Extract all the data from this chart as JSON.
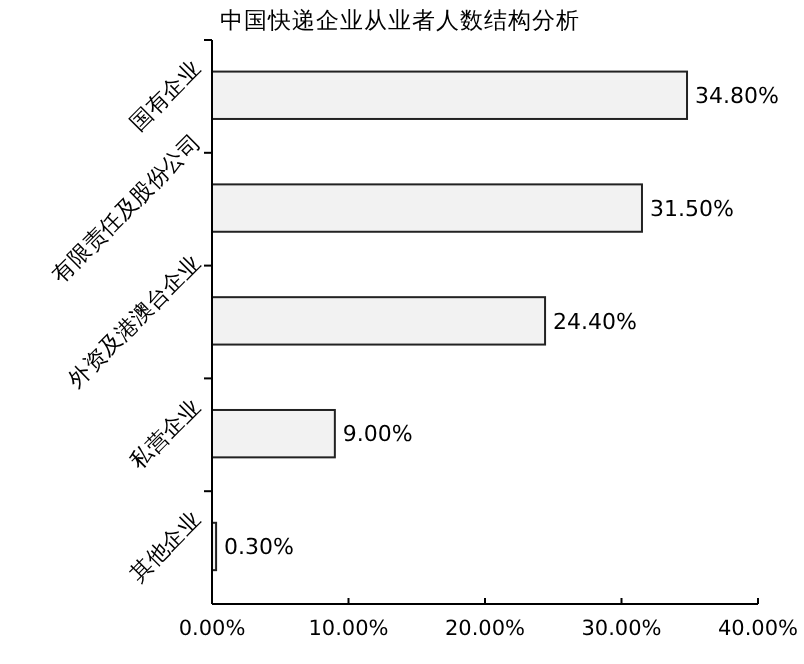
{
  "chart_data": {
    "type": "bar",
    "orientation": "horizontal",
    "title": "中国快递企业从业者人数结构分析",
    "categories": [
      "国有企业",
      "有限责任及股份公司",
      "外资及港澳台企业",
      "私营企业",
      "其他企业"
    ],
    "values": [
      34.8,
      31.5,
      24.4,
      9.0,
      0.3
    ],
    "value_labels": [
      "34.80%",
      "31.50%",
      "24.40%",
      "9.00%",
      "0.30%"
    ],
    "color": "#f2f2f2",
    "xlim": [
      0,
      40
    ],
    "xticks": [
      {
        "value": 0,
        "label": "0.00%"
      },
      {
        "value": 10,
        "label": "10.00%"
      },
      {
        "value": 20,
        "label": "20.00%"
      },
      {
        "value": 30,
        "label": "30.00%"
      },
      {
        "value": 40,
        "label": "40.00%"
      }
    ],
    "grid": false
  }
}
